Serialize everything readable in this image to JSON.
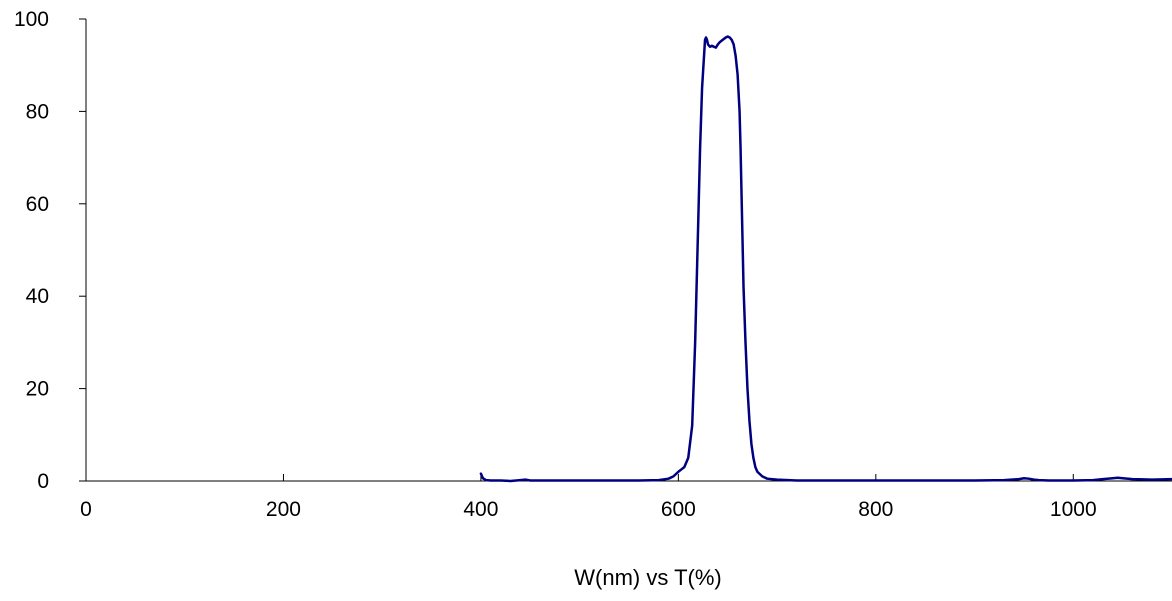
{
  "chart_data": {
    "type": "line",
    "title": "",
    "xlabel": "W(nm) vs T(%)",
    "ylabel": "",
    "xlim": [
      0,
      1100
    ],
    "ylim": [
      0,
      100
    ],
    "xticks": [
      "0",
      "200",
      "400",
      "600",
      "800",
      "1000"
    ],
    "xtick_values": [
      0,
      200,
      400,
      600,
      800,
      1000
    ],
    "yticks": [
      "0",
      "20",
      "40",
      "60",
      "80",
      "100"
    ],
    "ytick_values": [
      0,
      20,
      40,
      60,
      80,
      100
    ],
    "grid": false,
    "legend": "none",
    "colors": {
      "series": "#000080",
      "axis": "#000000"
    },
    "series": [
      {
        "x": [
          400,
          402,
          405,
          410,
          420,
          430,
          440,
          445,
          450,
          460,
          480,
          500,
          520,
          540,
          560,
          580,
          590,
          595,
          600,
          603,
          606,
          610,
          614,
          617,
          620,
          622,
          624,
          626,
          627,
          628,
          629,
          630,
          632,
          634,
          636,
          638,
          640,
          642,
          645,
          648,
          650,
          652,
          654,
          656,
          658,
          660,
          662,
          663,
          664,
          665,
          666,
          668,
          670,
          672,
          674,
          676,
          678,
          680,
          685,
          690,
          700,
          720,
          750,
          800,
          850,
          900,
          930,
          945,
          950,
          955,
          960,
          965,
          975,
          1000,
          1020,
          1030,
          1040,
          1045,
          1050,
          1060,
          1080,
          1100
        ],
        "y": [
          1.6,
          0.6,
          0.2,
          0.1,
          0.1,
          0.0,
          0.2,
          0.3,
          0.1,
          0.1,
          0.1,
          0.1,
          0.1,
          0.1,
          0.1,
          0.2,
          0.5,
          1.0,
          2.0,
          2.5,
          3.0,
          5.0,
          12.0,
          30.0,
          55.0,
          72.0,
          85.0,
          92.0,
          95.5,
          96.0,
          95.5,
          94.5,
          94.0,
          94.2,
          94.0,
          93.8,
          94.5,
          95.0,
          95.5,
          96.0,
          96.2,
          96.0,
          95.5,
          94.5,
          92.0,
          88.0,
          80.0,
          72.0,
          62.0,
          52.0,
          42.0,
          30.0,
          20.0,
          13.0,
          8.0,
          5.0,
          3.0,
          2.0,
          1.0,
          0.5,
          0.3,
          0.1,
          0.1,
          0.1,
          0.1,
          0.1,
          0.2,
          0.4,
          0.6,
          0.5,
          0.3,
          0.2,
          0.1,
          0.1,
          0.2,
          0.4,
          0.6,
          0.7,
          0.6,
          0.4,
          0.3,
          0.4
        ]
      }
    ]
  }
}
